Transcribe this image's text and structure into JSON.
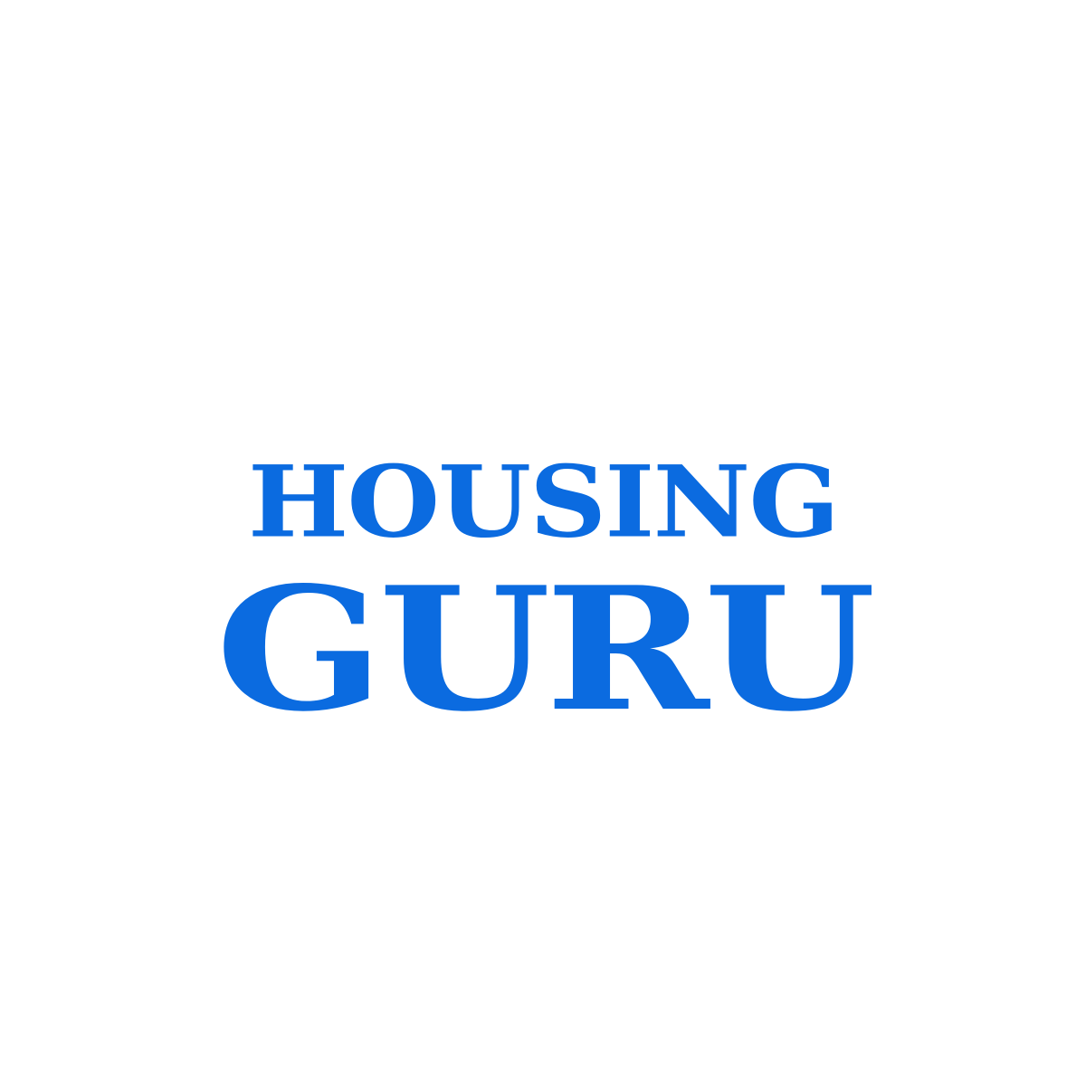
{
  "logo": {
    "line1": "HOUSING",
    "line2": "GURU",
    "color": "#0b6be0"
  },
  "background": "#ffffff"
}
